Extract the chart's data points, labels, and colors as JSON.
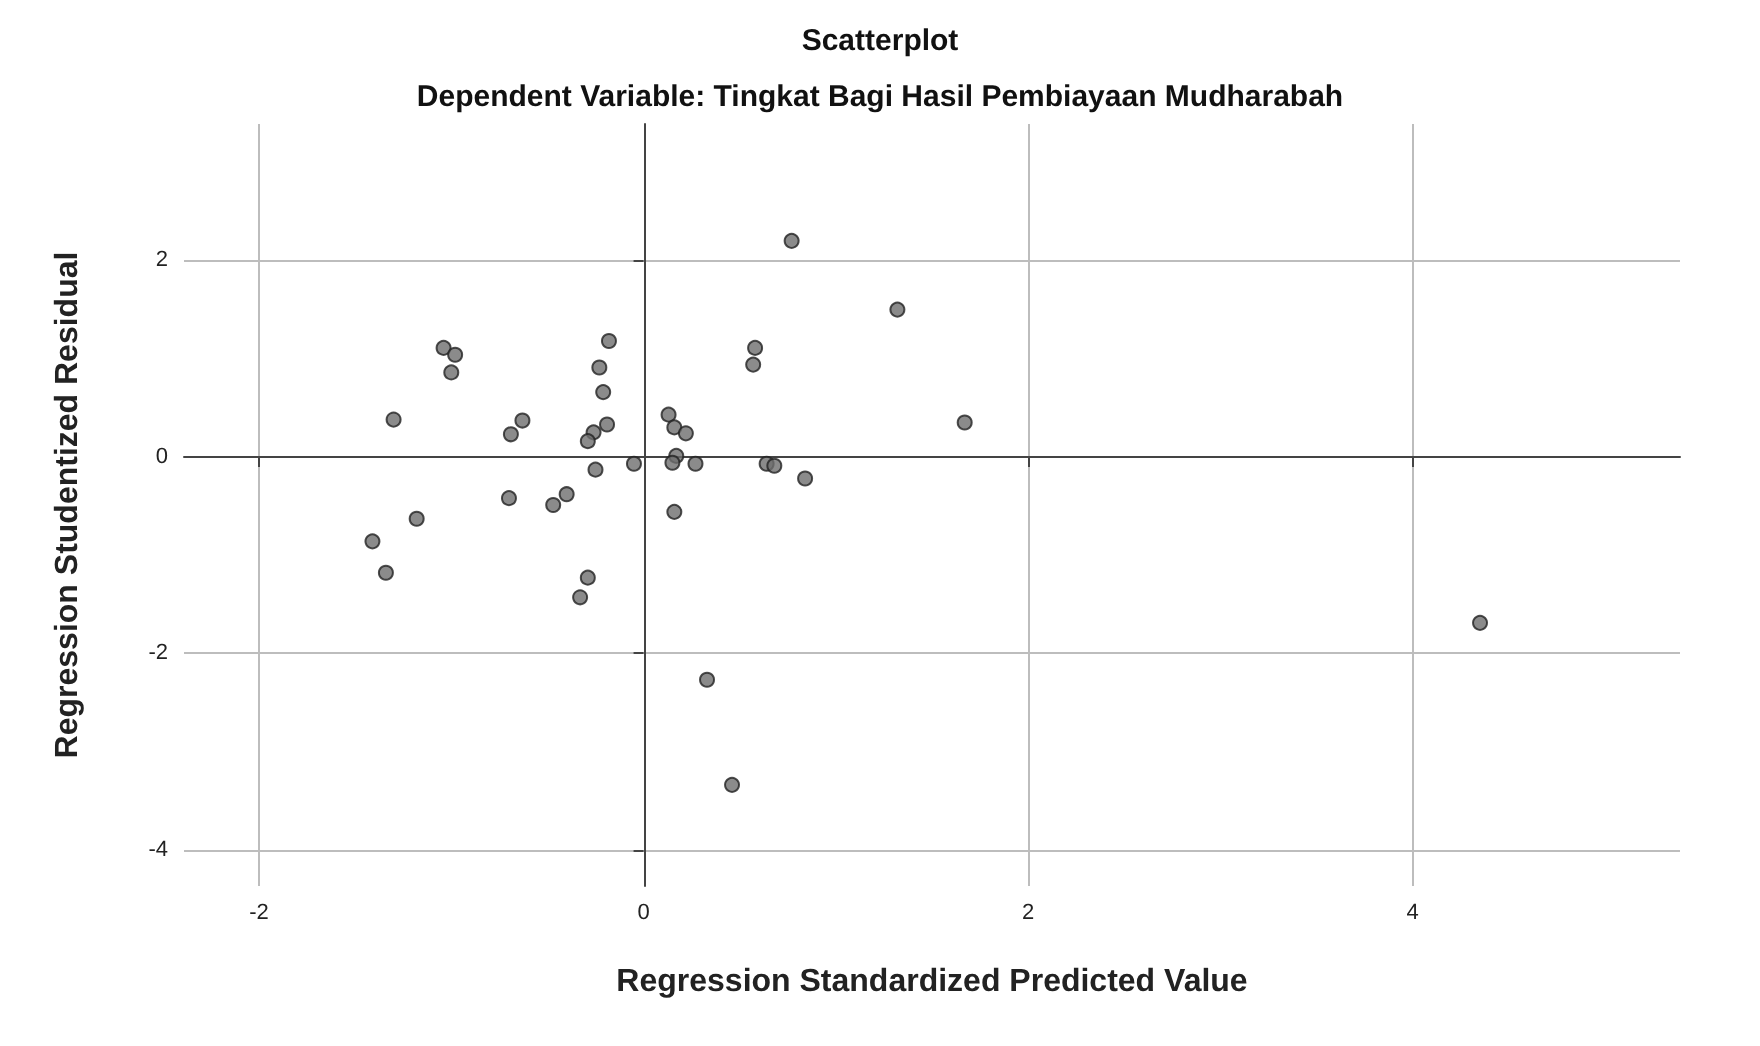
{
  "chart_data": {
    "type": "scatter",
    "title": "Scatterplot",
    "subtitle": "Dependent Variable: Tingkat Bagi Hasil Pembiayaan Mudharabah",
    "xlabel": "Regression Standardized Predicted Value",
    "ylabel": "Regression Studentized Residual",
    "x": [
      0.77,
      1.32,
      -1.04,
      -0.98,
      -1.0,
      -0.18,
      -0.23,
      -0.21,
      -0.19,
      -0.26,
      -0.29,
      -0.25,
      0.58,
      0.57,
      1.67,
      -1.3,
      -0.63,
      -0.69,
      0.13,
      0.16,
      0.22,
      0.17,
      0.15,
      0.27,
      -0.05,
      0.64,
      0.68,
      0.84,
      -0.7,
      -0.47,
      -0.4,
      0.16,
      -1.18,
      -1.41,
      -1.34,
      -0.29,
      -0.33,
      0.33,
      0.46,
      4.35
    ],
    "values": [
      2.2,
      1.5,
      1.11,
      1.04,
      0.86,
      1.18,
      0.91,
      0.66,
      0.33,
      0.25,
      0.16,
      -0.13,
      1.11,
      0.94,
      0.35,
      0.38,
      0.37,
      0.23,
      0.43,
      0.3,
      0.24,
      0.01,
      -0.06,
      -0.07,
      -0.07,
      -0.07,
      -0.09,
      -0.22,
      -0.42,
      -0.49,
      -0.38,
      -0.56,
      -0.63,
      -0.86,
      -1.18,
      -1.23,
      -1.43,
      -2.27,
      -3.34,
      -1.69
    ],
    "color": "#6e6e6e",
    "marker": "circle",
    "grid": true,
    "xlim": [
      -2.39,
      5.39
    ],
    "xticks": [
      -2,
      0,
      2,
      4
    ],
    "ylim": [
      -4.37,
      3.39
    ],
    "yticks": [
      -4,
      -2,
      0,
      2
    ]
  }
}
